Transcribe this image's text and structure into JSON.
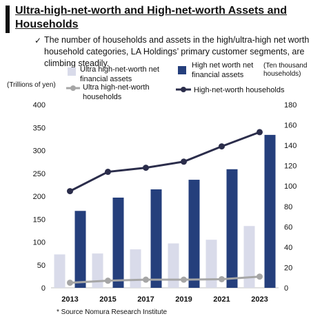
{
  "header": {
    "title": "Ultra-high-net-worth and High-net-worth Assets and Households",
    "check": "✓",
    "subtitle": "The number of households and assets in the high/ultra-high net worth household categories, LA Holdings’ primary customer segments, are climbing steadily."
  },
  "legend": {
    "uhnw_assets": "Ultra high-net-worth net financial assets",
    "hnw_assets": "High net worth net financial assets",
    "uhnw_households": "Ultra high-net-worth households",
    "hnw_households": "High-net-worth households"
  },
  "left_axis_title": "(Trillions of yen)",
  "right_axis_title": "(Ten thousand households)",
  "source": "* Source Nomura Research Institute",
  "colors": {
    "uhnw_bar": "#d9dbea",
    "hnw_bar": "#253f7c",
    "uhnw_line": "#a6a6a6",
    "hnw_line": "#2b2d4b"
  },
  "chart_data": {
    "type": "bar",
    "categories": [
      "2013",
      "2015",
      "2017",
      "2019",
      "2021",
      "2023"
    ],
    "ylim": [
      0,
      400
    ],
    "y2lim": [
      0,
      180
    ],
    "yticks": [
      "0",
      "50",
      "100",
      "150",
      "200",
      "250",
      "300",
      "350",
      "400"
    ],
    "y2ticks": [
      "0",
      "20",
      "40",
      "60",
      "80",
      "100",
      "120",
      "140",
      "160",
      "180"
    ],
    "series": [
      {
        "name": "Ultra high-net-worth net financial assets",
        "type": "bar",
        "axis": "left",
        "values": [
          73,
          75,
          84,
          97,
          105,
          135
        ]
      },
      {
        "name": "High net worth net financial assets",
        "type": "bar",
        "axis": "left",
        "values": [
          168,
          197,
          215,
          236,
          259,
          334
        ]
      },
      {
        "name": "Ultra high-net-worth households",
        "type": "line",
        "axis": "right",
        "values": [
          5,
          7,
          8,
          8,
          8.5,
          11
        ]
      },
      {
        "name": "High-net-worth households",
        "type": "line",
        "axis": "right",
        "values": [
          95,
          114,
          118,
          124,
          139,
          153
        ]
      }
    ]
  }
}
